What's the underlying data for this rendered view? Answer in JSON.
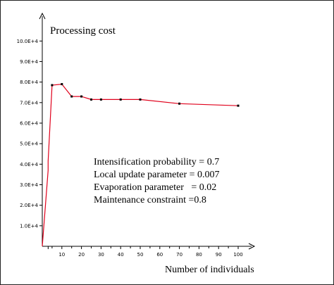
{
  "chart_data": {
    "type": "line",
    "title": "Processing cost",
    "xlabel": "Number of individuals",
    "ylabel": "",
    "xlim": [
      0,
      100
    ],
    "ylim": [
      0,
      100000
    ],
    "grid": false,
    "x_ticks": [
      "10",
      "20",
      "30",
      "40",
      "50",
      "60",
      "70",
      "80",
      "90",
      "100"
    ],
    "y_ticks": [
      "1.0E+4",
      "2.0E+4",
      "3.0E+4",
      "4.0E+4",
      "5.0E+4",
      "6.0E+4",
      "7.0E+4",
      "8.0E+4",
      "9.0E+4",
      "10.0E+4"
    ],
    "series": [
      {
        "color": "#e0001b",
        "points": [
          {
            "x": 0,
            "y": 0
          },
          {
            "x": 3,
            "y": 37000
          },
          {
            "x": 3,
            "y": 41500
          },
          {
            "x": 5,
            "y": 78500
          },
          {
            "x": 10,
            "y": 79000
          },
          {
            "x": 15,
            "y": 73000
          },
          {
            "x": 20,
            "y": 73000
          },
          {
            "x": 25,
            "y": 71500
          },
          {
            "x": 30,
            "y": 71500
          },
          {
            "x": 40,
            "y": 71500
          },
          {
            "x": 50,
            "y": 71500
          },
          {
            "x": 70,
            "y": 69500
          },
          {
            "x": 100,
            "y": 68500
          }
        ]
      }
    ],
    "annotations": [
      "Intensification probability = 0.7",
      "Local update parameter = 0.007",
      "Evaporation parameter   = 0.02",
      "Maintenance constraint =0.8"
    ]
  }
}
